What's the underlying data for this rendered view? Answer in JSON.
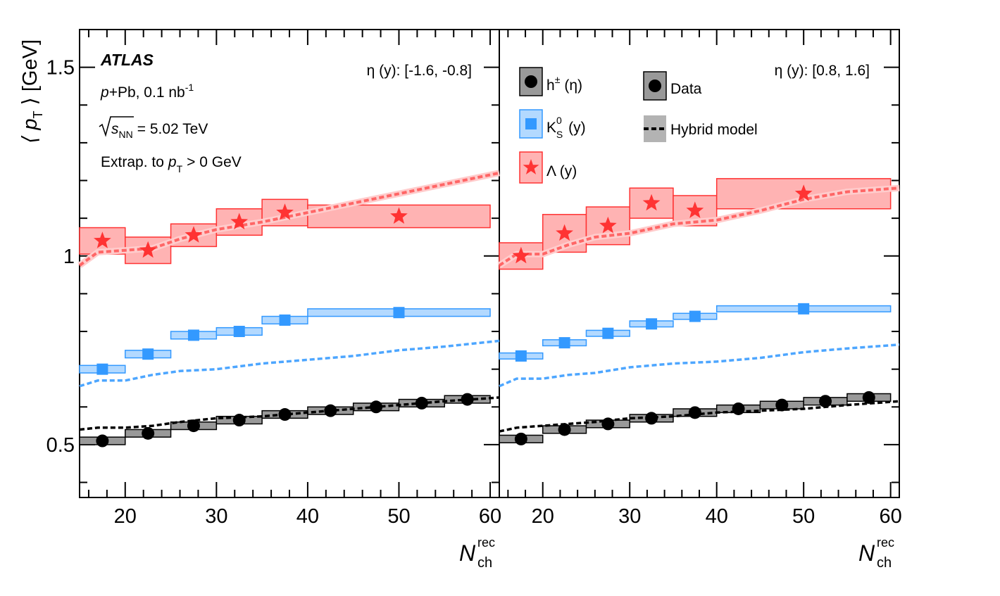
{
  "colors": {
    "charged": "#000000",
    "charged_box_fill": "#999999",
    "kshort": "#3399ff",
    "kshort_box_fill": "#b3d9ff",
    "lambda": "#ff3333",
    "lambda_box_fill": "#ffb3b3",
    "kshort_model": "#4da6ff",
    "lambda_model": "#ff6666",
    "lambda_model_band": "#ffcccc"
  },
  "chart_data": {
    "type": "scatter",
    "ylabel_text": "⟨ p",
    "ylabel_sub": "T",
    "ylabel_unit": "⟩ [GeV]",
    "xlabel_text": "N",
    "xlabel_sup": "rec",
    "xlabel_sub": "ch",
    "xlim": [
      15,
      61
    ],
    "ylim": [
      0.36,
      1.6
    ],
    "x_ticks": [
      "20",
      "30",
      "40",
      "50",
      "60"
    ],
    "y_ticks": [
      "0.5",
      "1",
      "1.5"
    ],
    "experiment": "ATLAS",
    "system_italic": "p",
    "system_rest": "+Pb, 0.1 nb",
    "system_sup": "-1",
    "energy_sqrt": "s",
    "energy_sub": "NN",
    "energy_rest": "= 5.02 TeV",
    "extrap_pre": "Extrap. to",
    "extrap_p": "p",
    "extrap_sub": "T",
    "extrap_post": "> 0 GeV",
    "legend": {
      "charged_main": "h",
      "charged_sup": "±",
      "charged_post": "(η)",
      "kshort_main": "K",
      "kshort_sup": "0",
      "kshort_sub": "S",
      "kshort_post": "(y)",
      "lambda": "Λ (y)",
      "data": "Data",
      "model": "Hybrid model"
    },
    "panels": [
      {
        "eta_label": "η (y): [-1.6, -0.8]",
        "charged": {
          "x": [
            17.5,
            22.5,
            27.5,
            32.5,
            37.5,
            42.5,
            47.5,
            52.5,
            57.5
          ],
          "y": [
            0.51,
            0.53,
            0.55,
            0.565,
            0.58,
            0.59,
            0.6,
            0.61,
            0.62
          ],
          "bins": [
            [
              15,
              20
            ],
            [
              20,
              25
            ],
            [
              25,
              30
            ],
            [
              30,
              35
            ],
            [
              35,
              40
            ],
            [
              40,
              45
            ],
            [
              45,
              50
            ],
            [
              50,
              55
            ],
            [
              55,
              60
            ]
          ],
          "sys": [
            0.01,
            0.01,
            0.01,
            0.01,
            0.01,
            0.01,
            0.01,
            0.01,
            0.01
          ]
        },
        "kshort": {
          "x": [
            17.5,
            22.5,
            27.5,
            32.5,
            37.5,
            50
          ],
          "y": [
            0.7,
            0.74,
            0.79,
            0.8,
            0.83,
            0.85
          ],
          "bins": [
            [
              15,
              20
            ],
            [
              20,
              25
            ],
            [
              25,
              30
            ],
            [
              30,
              35
            ],
            [
              35,
              40
            ],
            [
              40,
              60
            ]
          ],
          "sys": [
            0.01,
            0.01,
            0.01,
            0.01,
            0.01,
            0.01
          ]
        },
        "lambda": {
          "x": [
            17.5,
            22.5,
            27.5,
            32.5,
            37.5,
            50
          ],
          "y": [
            1.04,
            1.015,
            1.055,
            1.09,
            1.115,
            1.105
          ],
          "bins": [
            [
              15,
              20
            ],
            [
              20,
              25
            ],
            [
              25,
              30
            ],
            [
              30,
              35
            ],
            [
              35,
              40
            ],
            [
              40,
              60
            ]
          ],
          "sys": [
            0.035,
            0.035,
            0.03,
            0.035,
            0.035,
            0.03
          ]
        },
        "model_charged": {
          "x": [
            15,
            17,
            20,
            23,
            26,
            30,
            35,
            40,
            45,
            50,
            55,
            61
          ],
          "y": [
            0.54,
            0.545,
            0.545,
            0.55,
            0.56,
            0.57,
            0.575,
            0.585,
            0.595,
            0.605,
            0.615,
            0.625
          ]
        },
        "model_kshort": {
          "x": [
            15,
            17,
            20,
            23,
            26,
            30,
            35,
            40,
            45,
            50,
            55,
            61
          ],
          "y": [
            0.655,
            0.67,
            0.67,
            0.685,
            0.695,
            0.7,
            0.715,
            0.725,
            0.735,
            0.75,
            0.76,
            0.775
          ]
        },
        "model_lambda": {
          "x": [
            15,
            17,
            20,
            23,
            26,
            30,
            35,
            40,
            45,
            50,
            55,
            61
          ],
          "y": [
            0.975,
            1.01,
            1.015,
            1.02,
            1.045,
            1.07,
            1.09,
            1.115,
            1.14,
            1.165,
            1.19,
            1.22
          ]
        }
      },
      {
        "eta_label": "η (y): [0.8, 1.6]",
        "charged": {
          "x": [
            17.5,
            22.5,
            27.5,
            32.5,
            37.5,
            42.5,
            47.5,
            52.5,
            57.5
          ],
          "y": [
            0.515,
            0.54,
            0.555,
            0.57,
            0.585,
            0.595,
            0.605,
            0.615,
            0.625
          ],
          "bins": [
            [
              15,
              20
            ],
            [
              20,
              25
            ],
            [
              25,
              30
            ],
            [
              30,
              35
            ],
            [
              35,
              40
            ],
            [
              40,
              45
            ],
            [
              45,
              50
            ],
            [
              50,
              55
            ],
            [
              55,
              60
            ]
          ],
          "sys": [
            0.01,
            0.01,
            0.01,
            0.01,
            0.01,
            0.01,
            0.01,
            0.01,
            0.01
          ]
        },
        "kshort": {
          "x": [
            17.5,
            22.5,
            27.5,
            32.5,
            37.5,
            50
          ],
          "y": [
            0.735,
            0.77,
            0.795,
            0.82,
            0.84,
            0.86
          ],
          "bins": [
            [
              15,
              20
            ],
            [
              20,
              25
            ],
            [
              25,
              30
            ],
            [
              30,
              35
            ],
            [
              35,
              40
            ],
            [
              40,
              60
            ]
          ],
          "sys": [
            0.008,
            0.008,
            0.008,
            0.008,
            0.008,
            0.008
          ]
        },
        "lambda": {
          "x": [
            17.5,
            22.5,
            27.5,
            32.5,
            37.5,
            50
          ],
          "y": [
            1.0,
            1.06,
            1.08,
            1.14,
            1.12,
            1.165
          ],
          "bins": [
            [
              15,
              20
            ],
            [
              20,
              25
            ],
            [
              25,
              30
            ],
            [
              30,
              35
            ],
            [
              35,
              40
            ],
            [
              40,
              60
            ]
          ],
          "sys": [
            0.035,
            0.05,
            0.05,
            0.04,
            0.04,
            0.04
          ]
        },
        "model_charged": {
          "x": [
            15,
            17,
            20,
            23,
            26,
            30,
            35,
            40,
            45,
            50,
            55,
            61
          ],
          "y": [
            0.535,
            0.545,
            0.55,
            0.555,
            0.56,
            0.57,
            0.575,
            0.585,
            0.59,
            0.595,
            0.605,
            0.615
          ]
        },
        "model_kshort": {
          "x": [
            15,
            17,
            20,
            23,
            26,
            30,
            35,
            40,
            45,
            50,
            55,
            61
          ],
          "y": [
            0.655,
            0.675,
            0.675,
            0.685,
            0.69,
            0.705,
            0.715,
            0.72,
            0.73,
            0.745,
            0.755,
            0.765
          ]
        },
        "model_lambda": {
          "x": [
            15,
            17,
            20,
            23,
            26,
            30,
            35,
            40,
            45,
            50,
            55,
            61
          ],
          "y": [
            0.975,
            1.005,
            1.005,
            1.03,
            1.05,
            1.06,
            1.085,
            1.095,
            1.12,
            1.15,
            1.17,
            1.18
          ]
        }
      }
    ]
  }
}
